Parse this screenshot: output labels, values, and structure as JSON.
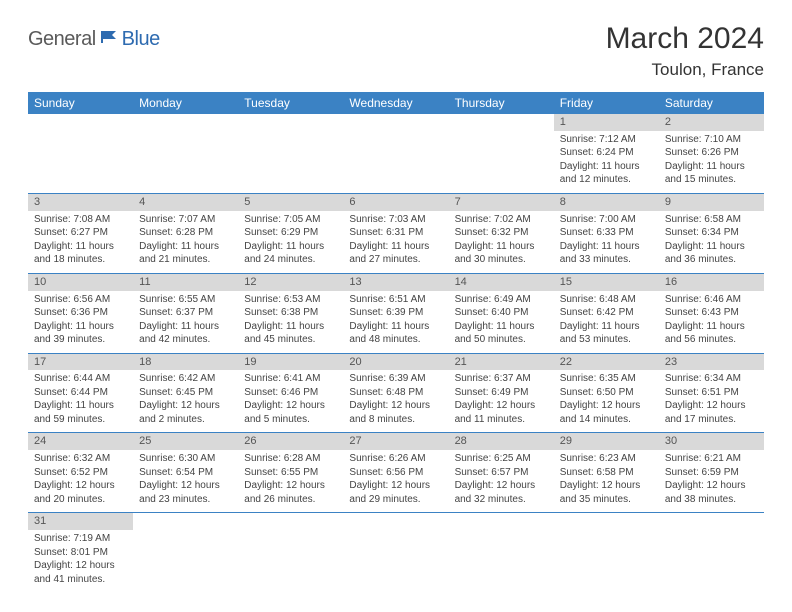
{
  "brand": {
    "part1": "General",
    "part2": "Blue"
  },
  "title": "March 2024",
  "location": "Toulon, France",
  "colors": {
    "header_bg": "#3b82c4",
    "header_fg": "#ffffff",
    "daynum_bg": "#d9d9d9",
    "row_divider": "#3b82c4",
    "text": "#444444",
    "brand_gray": "#5a5a5a",
    "brand_blue": "#2e6bb0"
  },
  "weekdays": [
    "Sunday",
    "Monday",
    "Tuesday",
    "Wednesday",
    "Thursday",
    "Friday",
    "Saturday"
  ],
  "weeks": [
    [
      null,
      null,
      null,
      null,
      null,
      {
        "n": "1",
        "sr": "Sunrise: 7:12 AM",
        "ss": "Sunset: 6:24 PM",
        "d1": "Daylight: 11 hours",
        "d2": "and 12 minutes."
      },
      {
        "n": "2",
        "sr": "Sunrise: 7:10 AM",
        "ss": "Sunset: 6:26 PM",
        "d1": "Daylight: 11 hours",
        "d2": "and 15 minutes."
      }
    ],
    [
      {
        "n": "3",
        "sr": "Sunrise: 7:08 AM",
        "ss": "Sunset: 6:27 PM",
        "d1": "Daylight: 11 hours",
        "d2": "and 18 minutes."
      },
      {
        "n": "4",
        "sr": "Sunrise: 7:07 AM",
        "ss": "Sunset: 6:28 PM",
        "d1": "Daylight: 11 hours",
        "d2": "and 21 minutes."
      },
      {
        "n": "5",
        "sr": "Sunrise: 7:05 AM",
        "ss": "Sunset: 6:29 PM",
        "d1": "Daylight: 11 hours",
        "d2": "and 24 minutes."
      },
      {
        "n": "6",
        "sr": "Sunrise: 7:03 AM",
        "ss": "Sunset: 6:31 PM",
        "d1": "Daylight: 11 hours",
        "d2": "and 27 minutes."
      },
      {
        "n": "7",
        "sr": "Sunrise: 7:02 AM",
        "ss": "Sunset: 6:32 PM",
        "d1": "Daylight: 11 hours",
        "d2": "and 30 minutes."
      },
      {
        "n": "8",
        "sr": "Sunrise: 7:00 AM",
        "ss": "Sunset: 6:33 PM",
        "d1": "Daylight: 11 hours",
        "d2": "and 33 minutes."
      },
      {
        "n": "9",
        "sr": "Sunrise: 6:58 AM",
        "ss": "Sunset: 6:34 PM",
        "d1": "Daylight: 11 hours",
        "d2": "and 36 minutes."
      }
    ],
    [
      {
        "n": "10",
        "sr": "Sunrise: 6:56 AM",
        "ss": "Sunset: 6:36 PM",
        "d1": "Daylight: 11 hours",
        "d2": "and 39 minutes."
      },
      {
        "n": "11",
        "sr": "Sunrise: 6:55 AM",
        "ss": "Sunset: 6:37 PM",
        "d1": "Daylight: 11 hours",
        "d2": "and 42 minutes."
      },
      {
        "n": "12",
        "sr": "Sunrise: 6:53 AM",
        "ss": "Sunset: 6:38 PM",
        "d1": "Daylight: 11 hours",
        "d2": "and 45 minutes."
      },
      {
        "n": "13",
        "sr": "Sunrise: 6:51 AM",
        "ss": "Sunset: 6:39 PM",
        "d1": "Daylight: 11 hours",
        "d2": "and 48 minutes."
      },
      {
        "n": "14",
        "sr": "Sunrise: 6:49 AM",
        "ss": "Sunset: 6:40 PM",
        "d1": "Daylight: 11 hours",
        "d2": "and 50 minutes."
      },
      {
        "n": "15",
        "sr": "Sunrise: 6:48 AM",
        "ss": "Sunset: 6:42 PM",
        "d1": "Daylight: 11 hours",
        "d2": "and 53 minutes."
      },
      {
        "n": "16",
        "sr": "Sunrise: 6:46 AM",
        "ss": "Sunset: 6:43 PM",
        "d1": "Daylight: 11 hours",
        "d2": "and 56 minutes."
      }
    ],
    [
      {
        "n": "17",
        "sr": "Sunrise: 6:44 AM",
        "ss": "Sunset: 6:44 PM",
        "d1": "Daylight: 11 hours",
        "d2": "and 59 minutes."
      },
      {
        "n": "18",
        "sr": "Sunrise: 6:42 AM",
        "ss": "Sunset: 6:45 PM",
        "d1": "Daylight: 12 hours",
        "d2": "and 2 minutes."
      },
      {
        "n": "19",
        "sr": "Sunrise: 6:41 AM",
        "ss": "Sunset: 6:46 PM",
        "d1": "Daylight: 12 hours",
        "d2": "and 5 minutes."
      },
      {
        "n": "20",
        "sr": "Sunrise: 6:39 AM",
        "ss": "Sunset: 6:48 PM",
        "d1": "Daylight: 12 hours",
        "d2": "and 8 minutes."
      },
      {
        "n": "21",
        "sr": "Sunrise: 6:37 AM",
        "ss": "Sunset: 6:49 PM",
        "d1": "Daylight: 12 hours",
        "d2": "and 11 minutes."
      },
      {
        "n": "22",
        "sr": "Sunrise: 6:35 AM",
        "ss": "Sunset: 6:50 PM",
        "d1": "Daylight: 12 hours",
        "d2": "and 14 minutes."
      },
      {
        "n": "23",
        "sr": "Sunrise: 6:34 AM",
        "ss": "Sunset: 6:51 PM",
        "d1": "Daylight: 12 hours",
        "d2": "and 17 minutes."
      }
    ],
    [
      {
        "n": "24",
        "sr": "Sunrise: 6:32 AM",
        "ss": "Sunset: 6:52 PM",
        "d1": "Daylight: 12 hours",
        "d2": "and 20 minutes."
      },
      {
        "n": "25",
        "sr": "Sunrise: 6:30 AM",
        "ss": "Sunset: 6:54 PM",
        "d1": "Daylight: 12 hours",
        "d2": "and 23 minutes."
      },
      {
        "n": "26",
        "sr": "Sunrise: 6:28 AM",
        "ss": "Sunset: 6:55 PM",
        "d1": "Daylight: 12 hours",
        "d2": "and 26 minutes."
      },
      {
        "n": "27",
        "sr": "Sunrise: 6:26 AM",
        "ss": "Sunset: 6:56 PM",
        "d1": "Daylight: 12 hours",
        "d2": "and 29 minutes."
      },
      {
        "n": "28",
        "sr": "Sunrise: 6:25 AM",
        "ss": "Sunset: 6:57 PM",
        "d1": "Daylight: 12 hours",
        "d2": "and 32 minutes."
      },
      {
        "n": "29",
        "sr": "Sunrise: 6:23 AM",
        "ss": "Sunset: 6:58 PM",
        "d1": "Daylight: 12 hours",
        "d2": "and 35 minutes."
      },
      {
        "n": "30",
        "sr": "Sunrise: 6:21 AM",
        "ss": "Sunset: 6:59 PM",
        "d1": "Daylight: 12 hours",
        "d2": "and 38 minutes."
      }
    ],
    [
      {
        "n": "31",
        "sr": "Sunrise: 7:19 AM",
        "ss": "Sunset: 8:01 PM",
        "d1": "Daylight: 12 hours",
        "d2": "and 41 minutes."
      },
      null,
      null,
      null,
      null,
      null,
      null
    ]
  ]
}
